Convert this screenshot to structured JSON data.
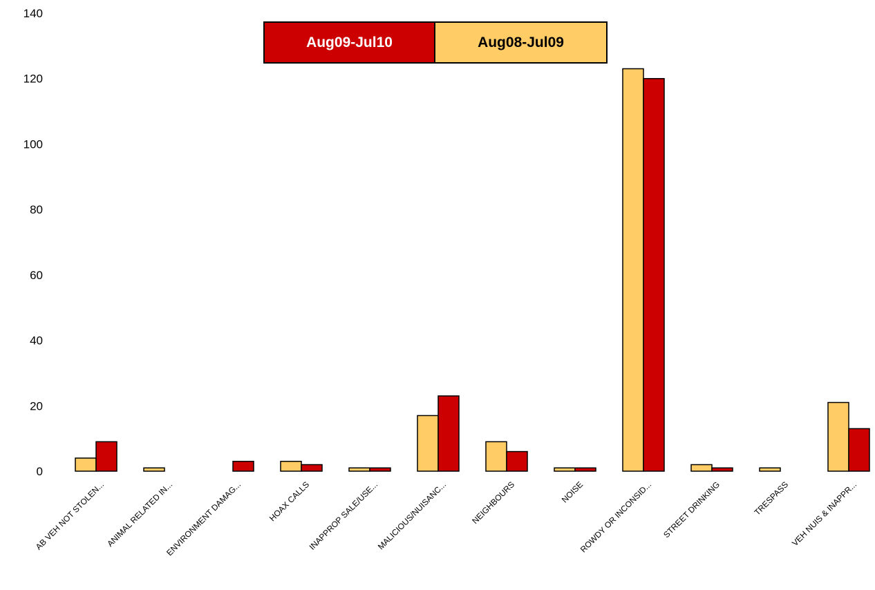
{
  "chart_data": {
    "type": "bar",
    "title": "",
    "xlabel": "",
    "ylabel": "",
    "ylim": [
      0,
      140
    ],
    "yticks": [
      0,
      20,
      40,
      60,
      80,
      100,
      120,
      140
    ],
    "grid": false,
    "legend_position": "top-center",
    "categories": [
      "AB VEH NOT STOLEN...",
      "ANIMAL RELATED IN...",
      "ENVIRONMENT DAMAG...",
      "HOAX CALLS",
      "INAPPROP SALE/USE...",
      "MALICIOUS/NUISANC...",
      "NEIGHBOURS",
      "NOISE",
      "ROWDY OR INCONSID...",
      "STREET DRINKING",
      "TRESPASS",
      "VEH NUIS & INAPPR..."
    ],
    "series": [
      {
        "name": "Aug08-Jul09",
        "color": "#FFCC66",
        "values": [
          4,
          1,
          0,
          3,
          1,
          17,
          9,
          1,
          123,
          2,
          1,
          21
        ]
      },
      {
        "name": "Aug09-Jul10",
        "color": "#CC0000",
        "values": [
          9,
          0,
          3,
          2,
          1,
          23,
          6,
          1,
          120,
          1,
          0,
          13
        ]
      }
    ],
    "legend": [
      {
        "label": "Aug09-Jul10",
        "color": "#CC0000",
        "text_color": "#FFFFFF"
      },
      {
        "label": "Aug08-Jul09",
        "color": "#FFCC66",
        "text_color": "#000000"
      }
    ]
  }
}
